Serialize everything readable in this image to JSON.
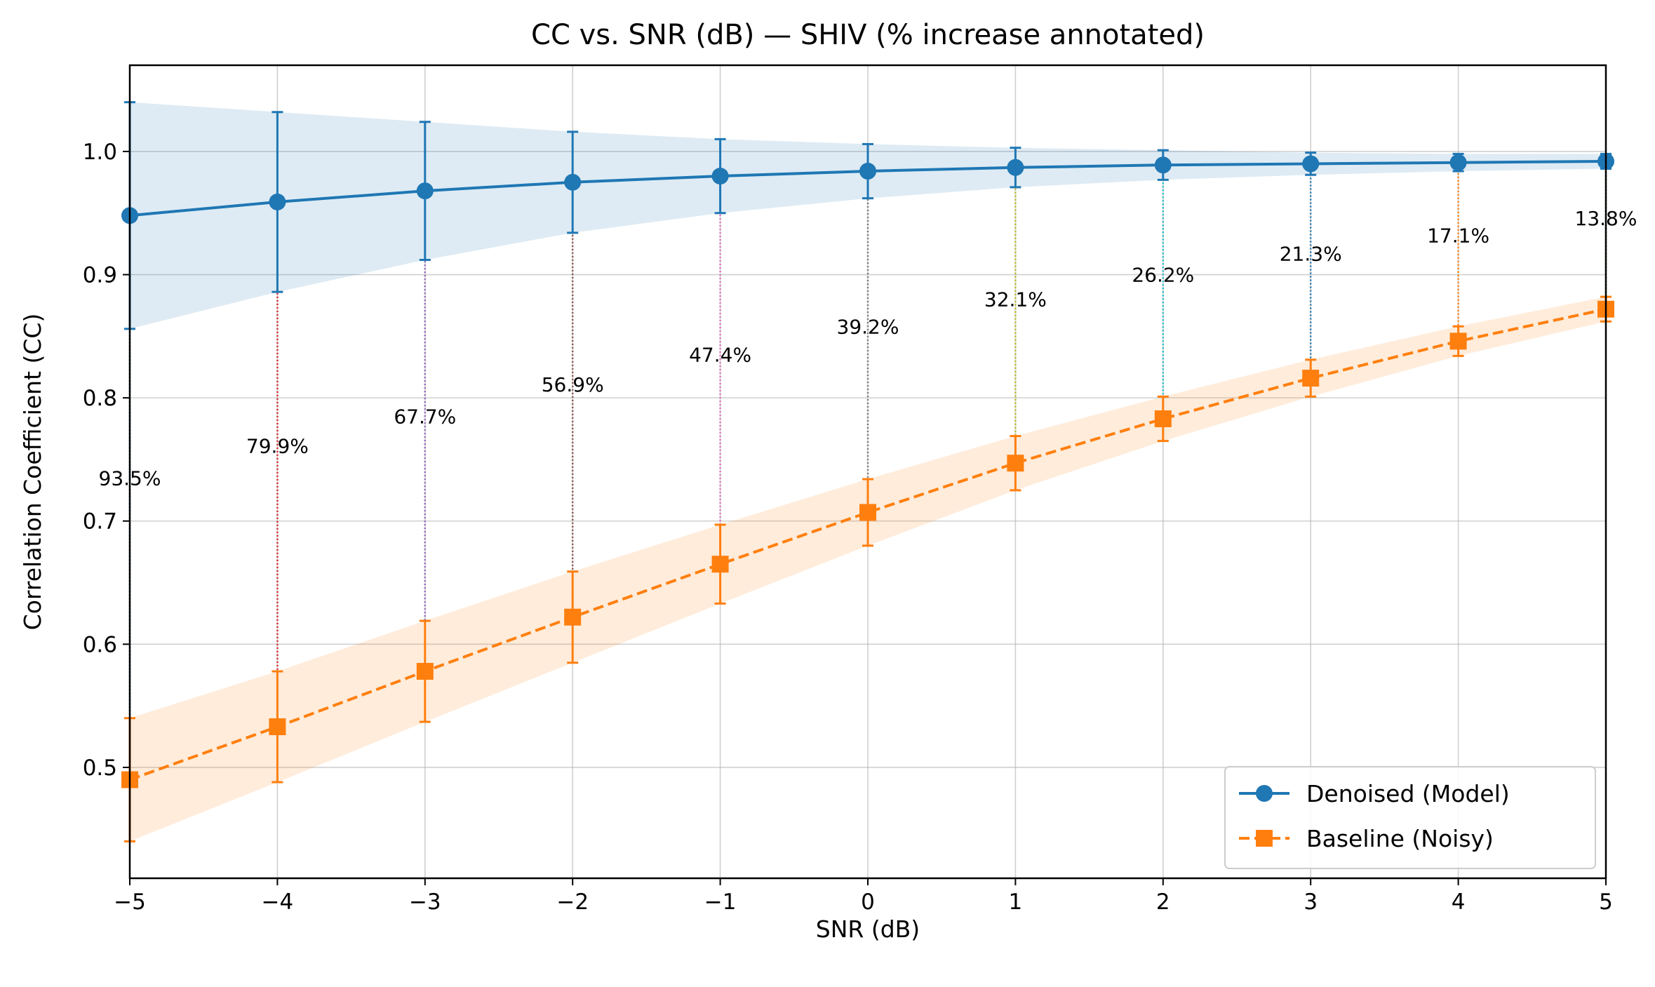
{
  "chart_data": {
    "type": "line",
    "title": "CC vs. SNR (dB) — SHIV (% increase annotated)",
    "xlabel": "SNR (dB)",
    "ylabel": "Correlation Coefficient (CC)",
    "xlim": [
      -5,
      5
    ],
    "ylim": [
      0.41,
      1.07
    ],
    "xticks": [
      -5,
      -4,
      -3,
      -2,
      -1,
      0,
      1,
      2,
      3,
      4,
      5
    ],
    "xtick_labels": [
      "−5",
      "−4",
      "−3",
      "−2",
      "−1",
      "0",
      "1",
      "2",
      "3",
      "4",
      "5"
    ],
    "yticks": [
      0.5,
      0.6,
      0.7,
      0.8,
      0.9,
      1.0
    ],
    "ytick_labels": [
      "0.5",
      "0.6",
      "0.7",
      "0.8",
      "0.9",
      "1.0"
    ],
    "grid": true,
    "legend_position": "lower-right",
    "x": [
      -5,
      -4,
      -3,
      -2,
      -1,
      0,
      1,
      2,
      3,
      4,
      5
    ],
    "series": [
      {
        "name": "Denoised (Model)",
        "color": "#1f77b4",
        "marker": "circle",
        "linestyle": "solid",
        "values": [
          0.948,
          0.959,
          0.968,
          0.975,
          0.98,
          0.984,
          0.987,
          0.989,
          0.99,
          0.991,
          0.992
        ],
        "error": [
          0.092,
          0.073,
          0.056,
          0.041,
          0.03,
          0.022,
          0.016,
          0.012,
          0.009,
          0.007,
          0.006
        ],
        "band": [
          0.092,
          0.073,
          0.056,
          0.041,
          0.03,
          0.022,
          0.016,
          0.012,
          0.009,
          0.007,
          0.006
        ]
      },
      {
        "name": "Baseline (Noisy)",
        "color": "#ff7f0e",
        "marker": "square",
        "linestyle": "dashed",
        "values": [
          0.49,
          0.533,
          0.578,
          0.622,
          0.665,
          0.707,
          0.747,
          0.783,
          0.816,
          0.846,
          0.872
        ],
        "error": [
          0.05,
          0.045,
          0.041,
          0.037,
          0.032,
          0.027,
          0.022,
          0.018,
          0.015,
          0.012,
          0.01
        ],
        "band": [
          0.05,
          0.045,
          0.041,
          0.037,
          0.032,
          0.027,
          0.022,
          0.018,
          0.015,
          0.012,
          0.01
        ]
      }
    ],
    "annotations": [
      {
        "x": -5,
        "label_y": 0.735,
        "text": "93.5%",
        "color": "#1f77b4"
      },
      {
        "x": -4,
        "label_y": 0.761,
        "text": "79.9%",
        "color": "#d62728"
      },
      {
        "x": -3,
        "label_y": 0.785,
        "text": "67.7%",
        "color": "#9467bd"
      },
      {
        "x": -2,
        "label_y": 0.811,
        "text": "56.9%",
        "color": "#8c564b"
      },
      {
        "x": -1,
        "label_y": 0.835,
        "text": "47.4%",
        "color": "#e377c2"
      },
      {
        "x": 0,
        "label_y": 0.858,
        "text": "39.2%",
        "color": "#7f7f7f"
      },
      {
        "x": 1,
        "label_y": 0.88,
        "text": "32.1%",
        "color": "#bcbd22"
      },
      {
        "x": 2,
        "label_y": 0.9,
        "text": "26.2%",
        "color": "#17becf"
      },
      {
        "x": 3,
        "label_y": 0.917,
        "text": "21.3%",
        "color": "#1f77b4"
      },
      {
        "x": 4,
        "label_y": 0.932,
        "text": "17.1%",
        "color": "#ff7f0e"
      },
      {
        "x": 5,
        "label_y": 0.946,
        "text": "13.8%",
        "color": "#2ca02c"
      }
    ]
  }
}
